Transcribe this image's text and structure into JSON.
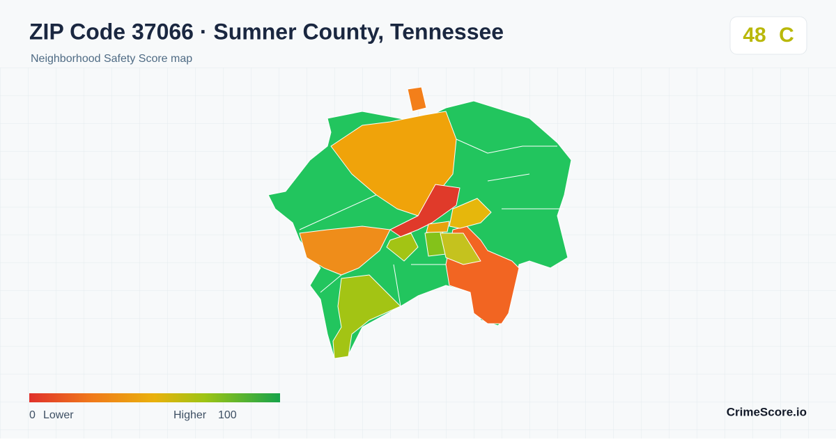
{
  "header": {
    "title": "ZIP Code 37066 · Sumner County, Tennessee",
    "subtitle": "Neighborhood Safety Score map"
  },
  "score": {
    "value": 48,
    "grade": "C"
  },
  "legend": {
    "min": 0,
    "min_label": "Lower",
    "max_label": "Higher",
    "max": 100
  },
  "brand": "CrimeScore.io"
}
